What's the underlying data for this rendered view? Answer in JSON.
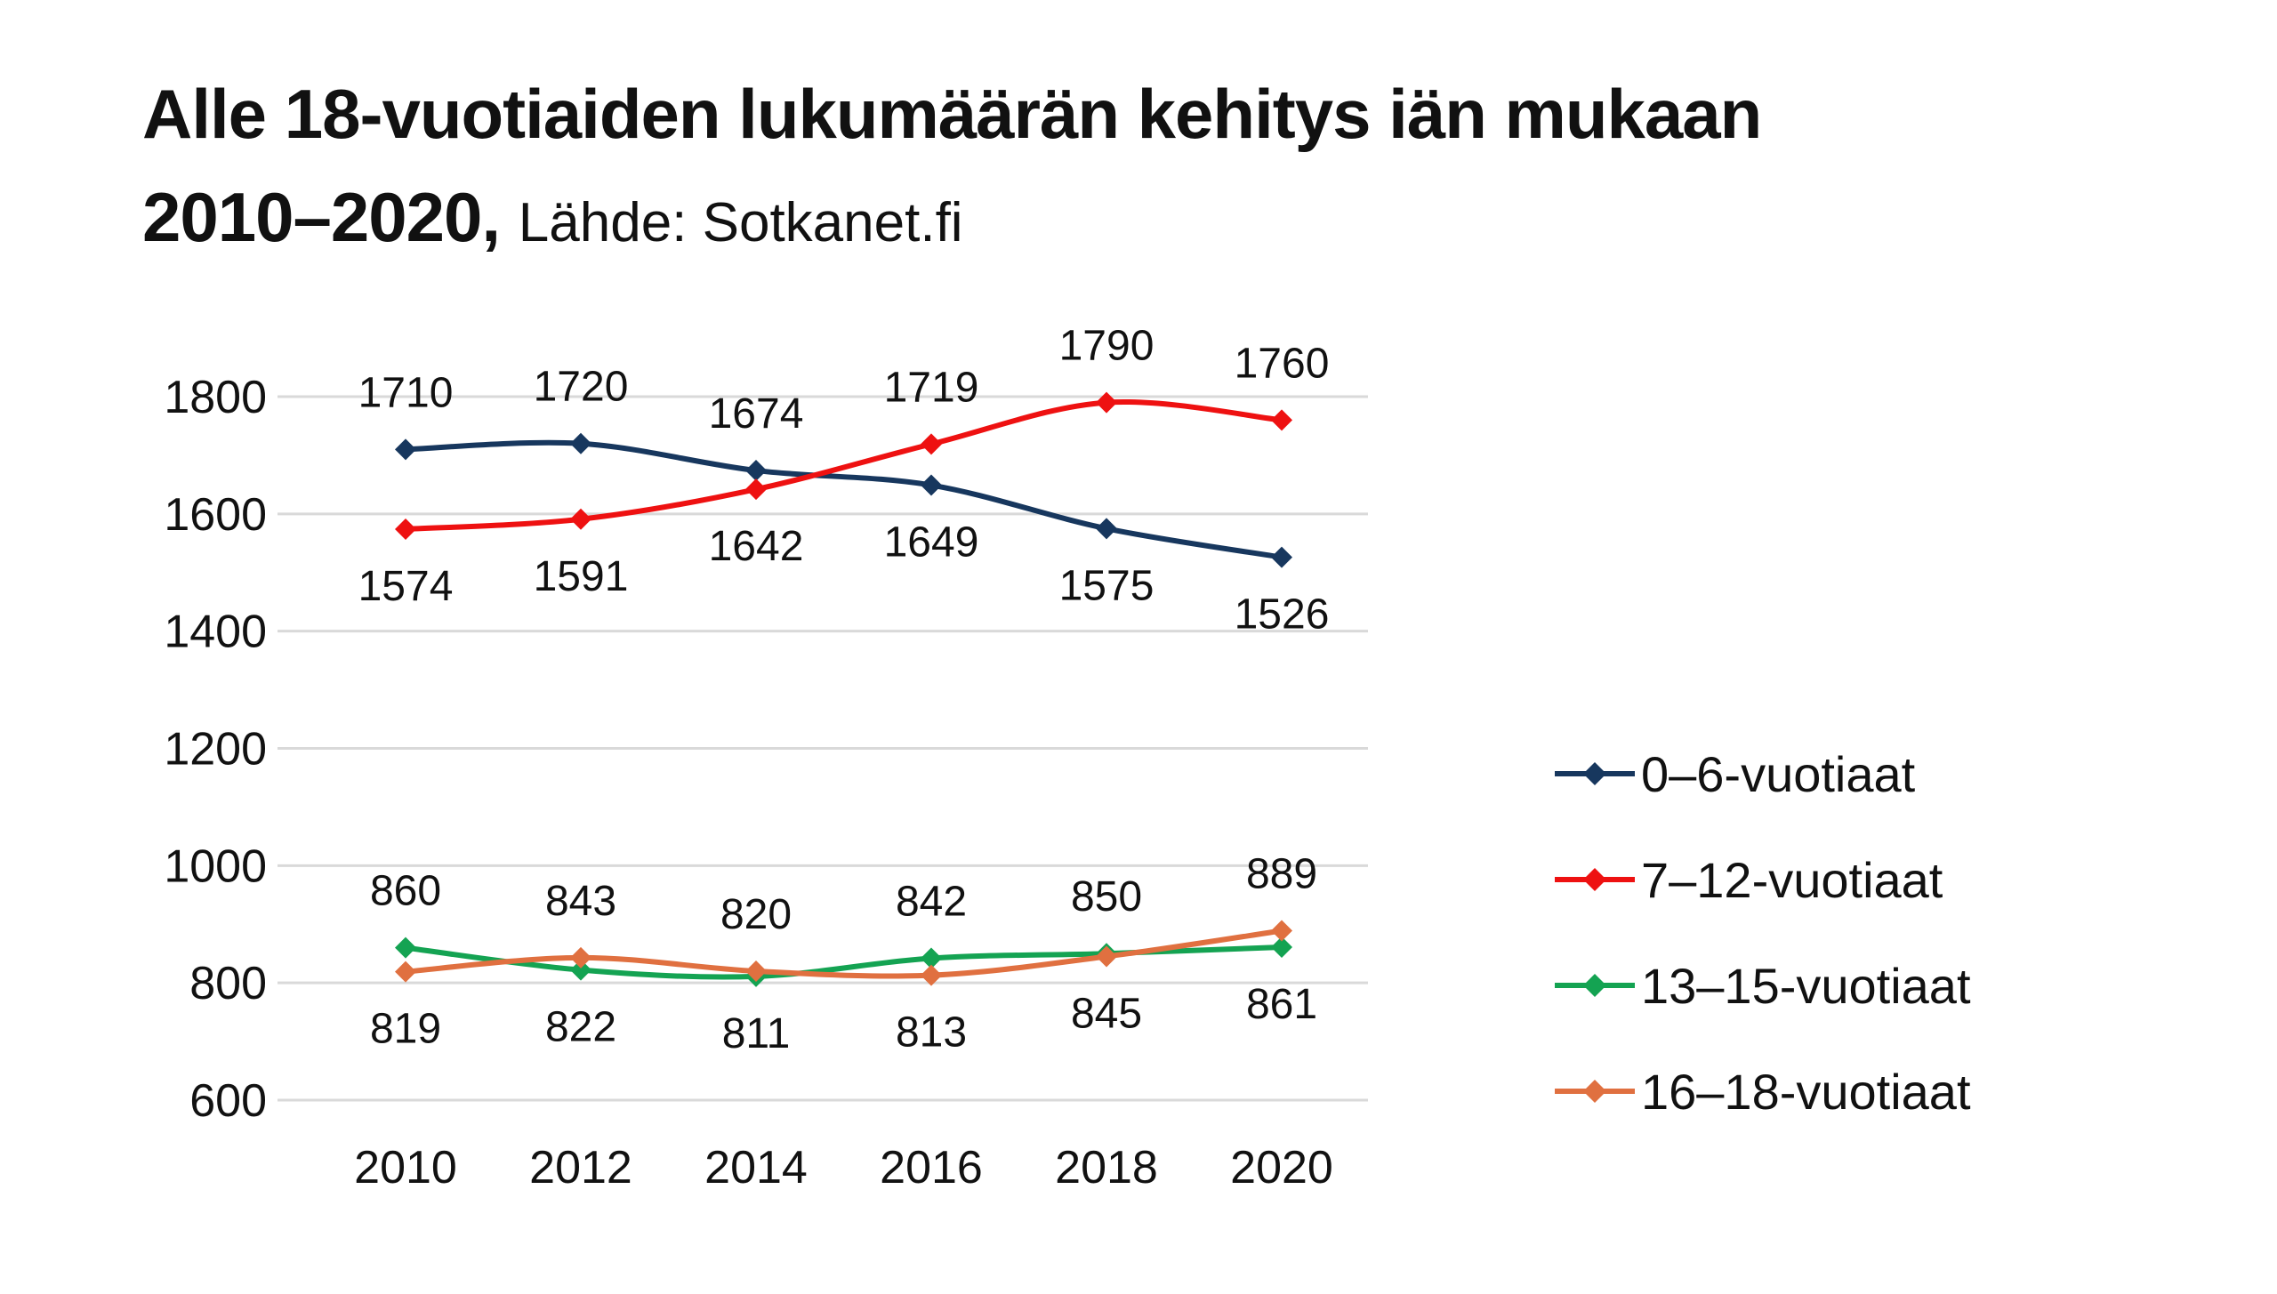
{
  "title": {
    "main_line1": "Alle 18-vuotiaiden lukumäärän kehitys iän mukaan",
    "main_line2": "2010–2020,",
    "source": "Lähde: Sotkanet.fi"
  },
  "chart_data": {
    "type": "line",
    "title": "Alle 18-vuotiaiden lukumäärän kehitys iän mukaan 2010–2020, Lähde: Sotkanet.fi",
    "xlabel": "",
    "ylabel": "",
    "x": [
      "2010",
      "2012",
      "2014",
      "2016",
      "2018",
      "2020"
    ],
    "ylim": [
      600,
      1800
    ],
    "yticks": [
      "600",
      "800",
      "1000",
      "1200",
      "1400",
      "1600",
      "1800"
    ],
    "grid": true,
    "legend_position": "right",
    "series": [
      {
        "name": "0–6-vuotiaat",
        "color": "#17375e",
        "values": [
          1710,
          1720,
          1674,
          1649,
          1575,
          1526
        ]
      },
      {
        "name": "7–12-vuotiaat",
        "color": "#ee1111",
        "values": [
          1574,
          1591,
          1642,
          1719,
          1790,
          1760
        ]
      },
      {
        "name": "13–15-vuotiaat",
        "color": "#14a352",
        "values": [
          860,
          822,
          811,
          842,
          850,
          861
        ]
      },
      {
        "name": "16–18-vuotiaat",
        "color": "#e07040",
        "values": [
          819,
          843,
          820,
          813,
          845,
          889
        ]
      }
    ]
  }
}
